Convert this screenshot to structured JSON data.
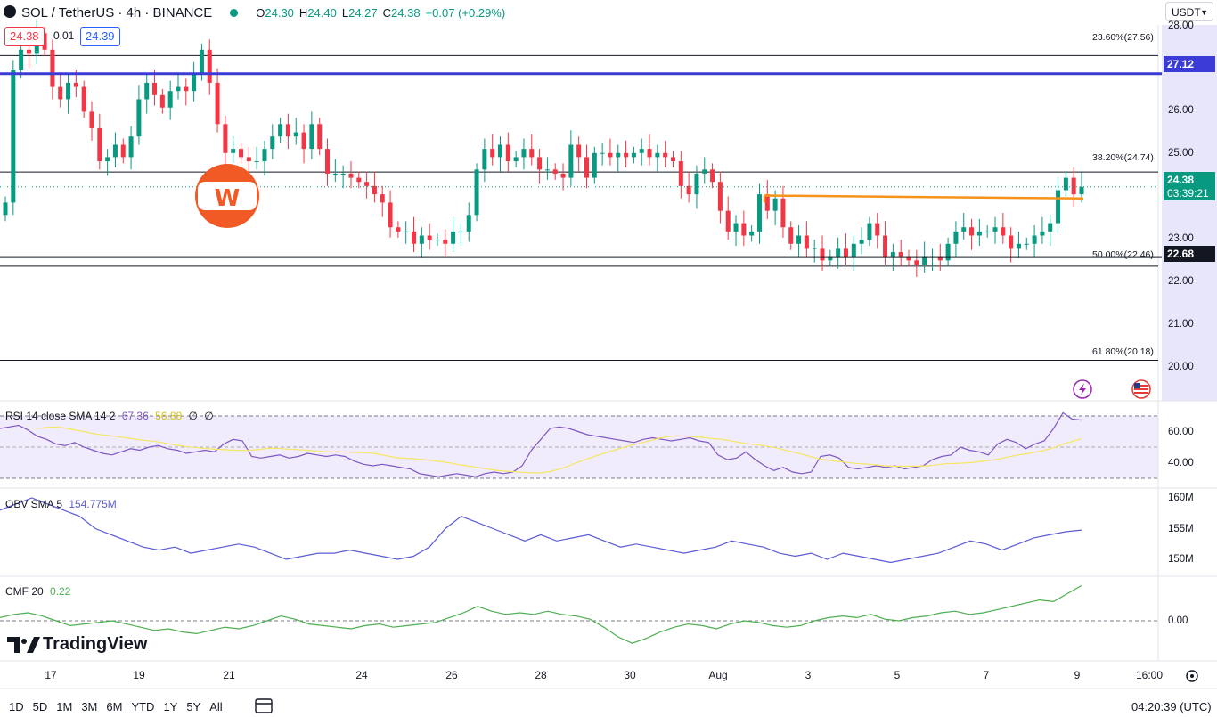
{
  "header": {
    "symbol": "SOL / TetherUS · 4h · BINANCE",
    "open_label": "O",
    "open": "24.30",
    "high_label": "H",
    "high": "24.40",
    "low_label": "L",
    "low": "24.27",
    "close_label": "C",
    "close": "24.38",
    "change": "+0.07 (+0.29%)",
    "bid": "24.38",
    "spread": "0.01",
    "ask": "24.39"
  },
  "currency_select": "USDT",
  "price_axis": {
    "ticks": [
      "28.00",
      "26.00",
      "25.00",
      "23.00",
      "22.00",
      "21.00",
      "20.00"
    ],
    "tag_horizontal_blue": "27.12",
    "tag_current_price": "24.38",
    "tag_countdown": "03:39:21",
    "tag_support": "22.68"
  },
  "fib_levels": [
    {
      "label": "23.60%(27.56)",
      "price": 27.56
    },
    {
      "label": "38.20%(24.74)",
      "price": 24.74
    },
    {
      "label": "50.00%(22.46)",
      "price": 22.46
    },
    {
      "label": "61.80%(20.18)",
      "price": 20.18
    }
  ],
  "horizontal_lines": {
    "blue": 27.12,
    "support_black": 22.68,
    "orange_from": 24.17,
    "orange_to": 24.1
  },
  "rsi": {
    "label": "RSI 14 close SMA 14 2",
    "value1": "67.36",
    "value2": "56.88",
    "value3": "∅",
    "value4": "∅",
    "ticks": [
      "60.00",
      "40.00"
    ]
  },
  "obv": {
    "label": "OBV SMA 5",
    "value": "154.775M",
    "ticks": [
      "160M",
      "155M",
      "150M"
    ]
  },
  "cmf": {
    "label": "CMF 20",
    "value": "0.22",
    "ticks": [
      "0.00"
    ]
  },
  "time_axis": {
    "labels": [
      "17",
      "19",
      "21",
      "24",
      "26",
      "28",
      "30",
      "Aug",
      "3",
      "5",
      "7",
      "9",
      "16:00"
    ]
  },
  "timeframes": [
    "1D",
    "5D",
    "1M",
    "3M",
    "6M",
    "YTD",
    "1Y",
    "5Y",
    "All"
  ],
  "clock": "04:20:39 (UTC)",
  "logo_text": "TradingView",
  "colors": {
    "up": "#089981",
    "down": "#f23645",
    "blue_line": "#3b3bd6",
    "orange_line": "#f7931a",
    "rsi": "#7e57c2",
    "rsi_sma": "#f5e663",
    "obv": "#5b5bd6",
    "cmf": "#4caf50"
  },
  "chart_data": {
    "type": "candlestick",
    "title": "SOL / TetherUS · 4h · BINANCE",
    "closes": [
      24.0,
      27.2,
      27.7,
      27.6,
      28.1,
      27.7,
      26.8,
      26.5,
      26.9,
      26.8,
      26.2,
      25.8,
      25.0,
      25.1,
      25.4,
      25.1,
      25.6,
      26.5,
      26.9,
      26.6,
      26.3,
      26.7,
      26.8,
      26.7,
      27.1,
      27.7,
      26.9,
      25.9,
      25.2,
      25.3,
      25.1,
      25.0,
      25.0,
      25.3,
      25.6,
      25.9,
      25.6,
      25.7,
      25.3,
      25.9,
      25.3,
      24.7,
      24.7,
      24.7,
      24.6,
      24.5,
      24.4,
      24.2,
      24.0,
      23.4,
      23.3,
      23.3,
      23.0,
      23.2,
      23.1,
      23.1,
      23.0,
      23.3,
      23.3,
      23.7,
      24.8,
      25.3,
      25.1,
      25.4,
      25.0,
      25.1,
      25.3,
      25.1,
      24.8,
      24.8,
      24.7,
      24.6,
      25.4,
      25.1,
      24.6,
      25.2,
      25.2,
      25.1,
      25.2,
      25.1,
      25.2,
      25.3,
      25.1,
      25.2,
      25.1,
      25.0,
      24.4,
      24.2,
      24.7,
      24.8,
      24.5,
      23.8,
      23.3,
      23.5,
      23.2,
      23.3,
      24.2,
      23.8,
      24.1,
      23.4,
      23.0,
      23.2,
      22.9,
      22.9,
      22.6,
      22.7,
      22.9,
      22.7,
      23.0,
      23.1,
      23.5,
      23.2,
      22.7,
      22.8,
      22.7,
      22.6,
      22.5,
      22.7,
      22.7,
      22.6,
      23.0,
      23.3,
      23.4,
      23.2,
      23.3,
      23.3,
      23.4,
      23.2,
      22.9,
      23.0,
      23.0,
      23.2,
      23.3,
      23.5,
      24.3,
      24.6,
      24.2,
      24.38
    ],
    "ylim": [
      19.2,
      28.3
    ],
    "fib": [
      {
        "pct": "23.60%",
        "price": 27.56
      },
      {
        "pct": "38.20%",
        "price": 24.74
      },
      {
        "pct": "50.00%",
        "price": 22.46
      },
      {
        "pct": "61.80%",
        "price": 20.18
      }
    ],
    "rsi_series": [
      62,
      63,
      64,
      61,
      57,
      55,
      52,
      51,
      53,
      50,
      48,
      46,
      45,
      47,
      49,
      48,
      50,
      51,
      49,
      48,
      46,
      47,
      48,
      47,
      52,
      55,
      54,
      44,
      43,
      44,
      45,
      43,
      44,
      46,
      45,
      44,
      45,
      44,
      41,
      39,
      38,
      39,
      38,
      37,
      36,
      33,
      32,
      31,
      32,
      33,
      32,
      31,
      33,
      34,
      33,
      34,
      38,
      48,
      55,
      62,
      63,
      62,
      60,
      58,
      57,
      56,
      55,
      54,
      53,
      55,
      56,
      55,
      54,
      55,
      56,
      54,
      53,
      45,
      42,
      43,
      47,
      42,
      38,
      35,
      37,
      34,
      33,
      34,
      44,
      45,
      43,
      37,
      36,
      37,
      38,
      37,
      38,
      36,
      37,
      38,
      42,
      44,
      45,
      50,
      48,
      47,
      45,
      52,
      55,
      53,
      49,
      52,
      54,
      62,
      72,
      68,
      67.36
    ],
    "obv_series": [
      158,
      159,
      160,
      159,
      158,
      157,
      155,
      154,
      153,
      152,
      151.5,
      152,
      151,
      151.5,
      152,
      152.5,
      152,
      151,
      150,
      150.5,
      151,
      151,
      151.5,
      151,
      150.5,
      150,
      150.5,
      152,
      155,
      157,
      156,
      155,
      154,
      153,
      154,
      153,
      153.5,
      154,
      153,
      152,
      152.5,
      152,
      151.5,
      151,
      151.5,
      152,
      153,
      152.5,
      152,
      151,
      150.5,
      151,
      150,
      151,
      150.5,
      150,
      149.5,
      150,
      150.5,
      151,
      152,
      153,
      152.5,
      151.5,
      152.5,
      153.5,
      154,
      154.5,
      154.775
    ],
    "cmf_series": [
      0.02,
      0.04,
      0.05,
      0.03,
      0.0,
      -0.03,
      -0.02,
      -0.01,
      0.0,
      -0.02,
      -0.04,
      -0.06,
      -0.05,
      -0.07,
      -0.08,
      -0.06,
      -0.04,
      -0.05,
      -0.03,
      0.0,
      0.03,
      0.01,
      -0.02,
      -0.03,
      -0.04,
      -0.05,
      -0.03,
      -0.02,
      -0.04,
      -0.03,
      -0.02,
      -0.01,
      0.02,
      0.05,
      0.09,
      0.06,
      0.04,
      0.05,
      0.04,
      0.06,
      0.04,
      0.03,
      0.01,
      -0.04,
      -0.1,
      -0.14,
      -0.11,
      -0.07,
      -0.04,
      -0.02,
      -0.03,
      -0.05,
      -0.02,
      0.0,
      -0.01,
      -0.03,
      -0.04,
      -0.03,
      0.0,
      0.02,
      0.03,
      0.02,
      0.04,
      0.01,
      0.0,
      0.02,
      0.03,
      0.05,
      0.06,
      0.04,
      0.05,
      0.07,
      0.09,
      0.11,
      0.13,
      0.12,
      0.17,
      0.22
    ]
  }
}
